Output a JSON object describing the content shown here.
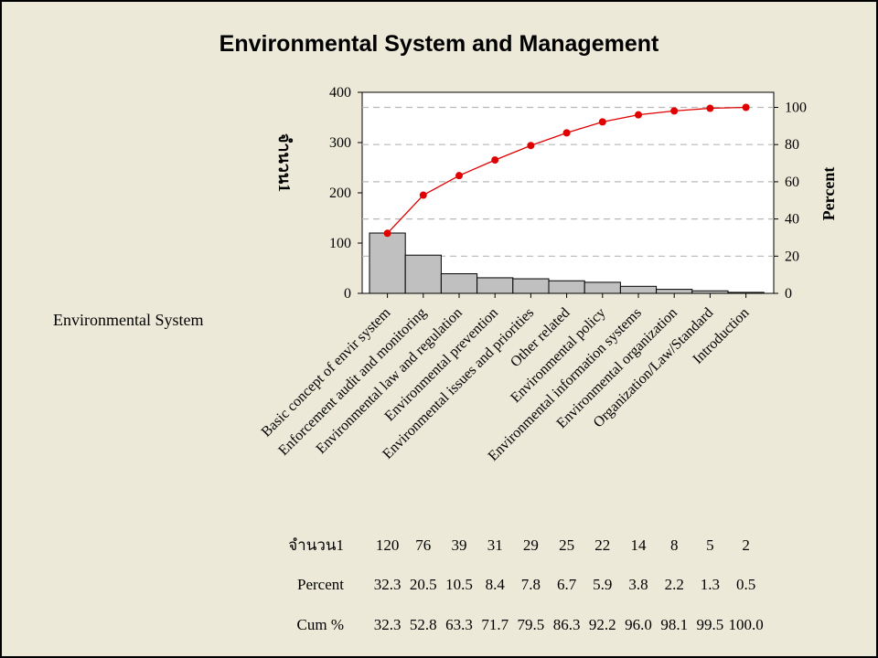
{
  "colors": {
    "background": "#ece9d8",
    "plot_background": "#ffffff",
    "bar_fill": "#c0c0c0",
    "bar_stroke": "#000000",
    "cum_line": "#e00000",
    "grid": "#b8b8b8"
  },
  "chart_data": {
    "type": "bar",
    "subtype": "pareto",
    "title": "Environmental System and Management",
    "xlabel": "Environmental System",
    "ylabel_left": "จำนวน1",
    "ylabel_right": "Percent",
    "ylim_left": [
      0,
      400
    ],
    "yticks_left": [
      "0",
      "100",
      "200",
      "300",
      "400"
    ],
    "ylim_right": [
      0,
      108.11
    ],
    "yticks_right": [
      "0",
      "20",
      "40",
      "60",
      "80",
      "100"
    ],
    "grid": "dashed horizontal lines at right-axis ticks",
    "categories": [
      "Basic concept of envir system",
      "Enforcement audit and monitoring",
      "Environmental law and regulation",
      "Environmental prevention",
      "Environmental issues and priorities",
      "Other related",
      "Environmental policy",
      "Environmental information systems",
      "Environmental organization",
      "Organization/Law/Standard",
      "Introduction"
    ],
    "series": [
      {
        "name": "จำนวน1",
        "type": "bar",
        "values": [
          120,
          76,
          39,
          31,
          29,
          25,
          22,
          14,
          8,
          5,
          2
        ]
      },
      {
        "name": "Cum %",
        "type": "line",
        "axis": "right",
        "values": [
          32.3,
          52.8,
          63.3,
          71.7,
          79.5,
          86.3,
          92.2,
          96.0,
          98.1,
          99.5,
          100.0
        ]
      }
    ],
    "table": {
      "row_labels": [
        "จำนวน1",
        "Percent",
        "Cum %"
      ],
      "counts": [
        "120",
        "76",
        "39",
        "31",
        "29",
        "25",
        "22",
        "14",
        "8",
        "5",
        "2"
      ],
      "percent": [
        "32.3",
        "20.5",
        "10.5",
        "8.4",
        "7.8",
        "6.7",
        "5.9",
        "3.8",
        "2.2",
        "1.3",
        "0.5"
      ],
      "cum_percent": [
        "32.3",
        "52.8",
        "63.3",
        "71.7",
        "79.5",
        "86.3",
        "92.2",
        "96.0",
        "98.1",
        "99.5",
        "100.0"
      ]
    }
  }
}
